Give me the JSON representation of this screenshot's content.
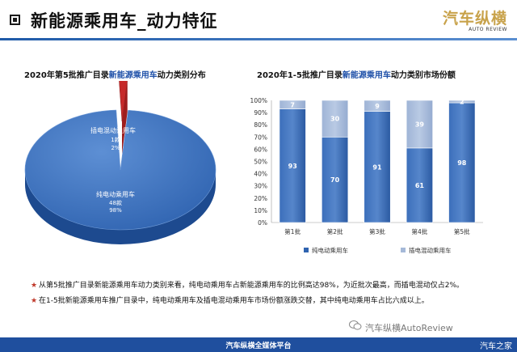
{
  "header": {
    "title": "新能源乘用车_动力特征",
    "logo_text": "汽车纵横",
    "logo_sub": "AUTO REVIEW"
  },
  "pie_chart_title": {
    "prefix": "2020年第5批推广目录",
    "highlight": "新能源乘用车",
    "suffix": "动力类别分布"
  },
  "bar_chart_title": {
    "prefix": "2020年1-5批推广目录",
    "highlight": "新能源乘用车",
    "suffix": "动力类别市场份额"
  },
  "bullets": [
    "从第5批推广目录新能源乘用车动力类别来看，纯电动乘用车占新能源乘用车的比例高达98%，为近批次最高，而插电混动仅占2%。",
    "在1-5批新能源乘用车推广目录中，纯电动乘用车及插电混动乘用车市场份额涨跌交替，其中纯电动乘用车占比六成以上。"
  ],
  "watermark": "汽车纵横AutoReview",
  "footer": {
    "text": "汽车纵横全媒体平台",
    "right": "汽车之家"
  },
  "colors": {
    "bev": "#2f63b0",
    "phev": "#a5b9d8",
    "phev_pie": "#c62a2a",
    "accent": "#1d4fa8"
  },
  "chart_data": [
    {
      "type": "pie",
      "title": "2020年第5批推广目录新能源乘用车动力类别分布",
      "slices": [
        {
          "name": "纯电动乘用车",
          "count_label": "48款",
          "percent_label": "98%",
          "value": 98
        },
        {
          "name": "插电混动乘用车",
          "count_label": "1款",
          "percent_label": "2%",
          "value": 2
        }
      ]
    },
    {
      "type": "bar",
      "stacked": true,
      "percent": true,
      "title": "2020年1-5批推广目录新能源乘用车动力类别市场份额",
      "categories": [
        "第1批",
        "第2批",
        "第3批",
        "第4批",
        "第5批"
      ],
      "series": [
        {
          "name": "纯电动乘用车",
          "values": [
            93,
            70,
            91,
            61,
            98
          ]
        },
        {
          "name": "插电混动乘用车",
          "values": [
            7,
            30,
            9,
            39,
            2
          ]
        }
      ],
      "y_ticks": [
        "0%",
        "10%",
        "20%",
        "30%",
        "40%",
        "50%",
        "60%",
        "70%",
        "80%",
        "90%",
        "100%"
      ],
      "ylim": [
        0,
        100
      ],
      "legend_position": "bottom",
      "grid": false
    }
  ]
}
